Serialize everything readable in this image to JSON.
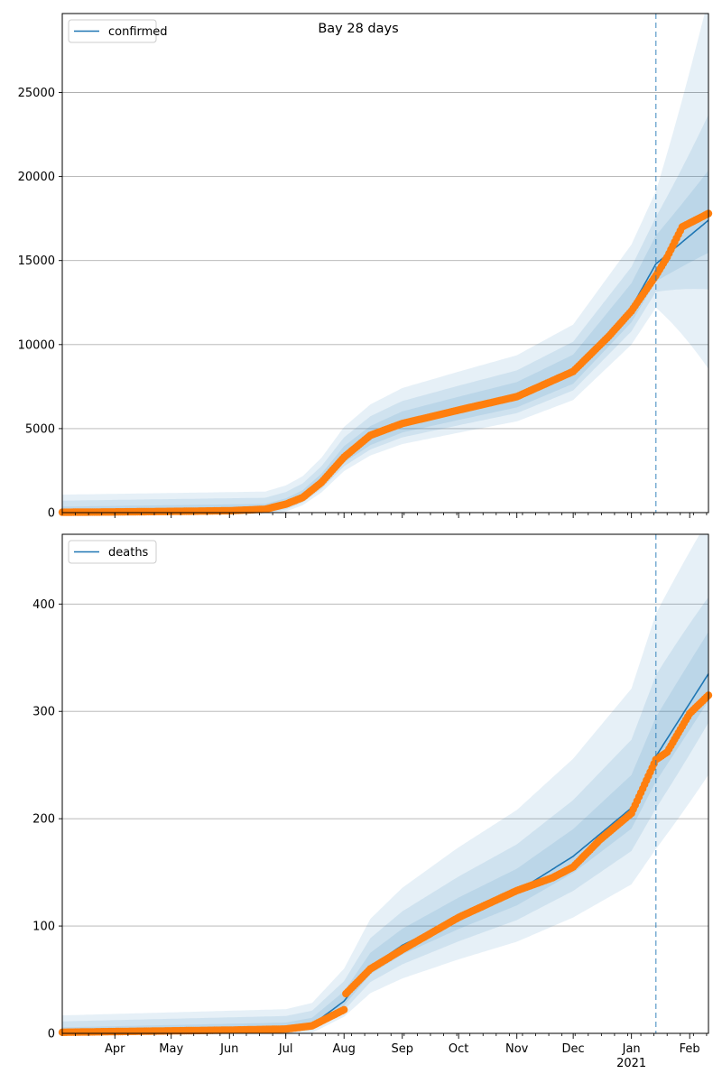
{
  "title": "Bay 28 days",
  "colors": {
    "model_line": "#1f77b4",
    "observed_points": "#ff7f0e",
    "band": "#1f77b4",
    "forecast_marker": "#1f77b4",
    "grid": "#b0b0b0"
  },
  "x_axis": {
    "month_ticks": [
      {
        "label": "Apr",
        "date": "2020-04-01"
      },
      {
        "label": "May",
        "date": "2020-05-01"
      },
      {
        "label": "Jun",
        "date": "2020-06-01"
      },
      {
        "label": "Jul",
        "date": "2020-07-01"
      },
      {
        "label": "Aug",
        "date": "2020-08-01"
      },
      {
        "label": "Sep",
        "date": "2020-09-01"
      },
      {
        "label": "Oct",
        "date": "2020-10-01"
      },
      {
        "label": "Nov",
        "date": "2020-11-01"
      },
      {
        "label": "Dec",
        "date": "2020-12-01"
      },
      {
        "label": "Jan",
        "date": "2021-01-01"
      },
      {
        "label": "Feb",
        "date": "2021-02-01"
      }
    ],
    "year_label": "2021",
    "range": [
      "2020-03-04",
      "2021-02-11"
    ],
    "forecast_start": "2021-01-14"
  },
  "chart_data": [
    {
      "type": "line",
      "legend": "confirmed",
      "legend_position": "upper-left",
      "grid": "y",
      "ylim": [
        0,
        29700
      ],
      "yticks": [
        0,
        5000,
        10000,
        15000,
        20000,
        25000
      ],
      "model": [
        [
          "2020-03-04",
          0
        ],
        [
          "2020-06-20",
          150
        ],
        [
          "2020-07-01",
          450
        ],
        [
          "2020-07-10",
          900
        ],
        [
          "2020-07-20",
          1800
        ],
        [
          "2020-08-01",
          3300
        ],
        [
          "2020-08-15",
          4400
        ],
        [
          "2020-09-01",
          5200
        ],
        [
          "2020-10-01",
          6000
        ],
        [
          "2020-11-01",
          6800
        ],
        [
          "2020-12-01",
          8300
        ],
        [
          "2021-01-01",
          12200
        ],
        [
          "2021-01-14",
          14800
        ],
        [
          "2021-02-11",
          17400
        ]
      ],
      "band_halfwidth_pct": [
        [
          0.09,
          0.14,
          0.22
        ],
        [
          0.15,
          0.32,
          0.7
        ]
      ],
      "observed": [
        [
          "2020-03-04",
          20
        ],
        [
          "2020-04-01",
          40
        ],
        [
          "2020-05-01",
          70
        ],
        [
          "2020-06-01",
          110
        ],
        [
          "2020-06-20",
          200
        ],
        [
          "2020-07-01",
          500
        ],
        [
          "2020-07-10",
          900
        ],
        [
          "2020-07-20",
          1800
        ],
        [
          "2020-08-01",
          3300
        ],
        [
          "2020-08-15",
          4600
        ],
        [
          "2020-09-01",
          5300
        ],
        [
          "2020-10-01",
          6100
        ],
        [
          "2020-11-01",
          6900
        ],
        [
          "2020-11-15",
          7600
        ],
        [
          "2020-12-01",
          8400
        ],
        [
          "2020-12-20",
          10500
        ],
        [
          "2021-01-01",
          12000
        ],
        [
          "2021-01-14",
          14100
        ],
        [
          "2021-01-20",
          15200
        ],
        [
          "2021-01-28",
          17000
        ],
        [
          "2021-02-11",
          17800
        ]
      ]
    },
    {
      "type": "line",
      "legend": "deaths",
      "legend_position": "upper-left",
      "grid": "y",
      "ylim": [
        0,
        465
      ],
      "yticks": [
        0,
        100,
        200,
        300,
        400
      ],
      "model": [
        [
          "2020-03-04",
          0
        ],
        [
          "2020-07-01",
          4
        ],
        [
          "2020-07-15",
          8
        ],
        [
          "2020-08-01",
          30
        ],
        [
          "2020-08-15",
          62
        ],
        [
          "2020-09-01",
          82
        ],
        [
          "2020-10-01",
          108
        ],
        [
          "2020-11-01",
          132
        ],
        [
          "2020-12-01",
          165
        ],
        [
          "2021-01-01",
          210
        ],
        [
          "2021-01-14",
          258
        ],
        [
          "2021-02-11",
          335
        ]
      ],
      "band_halfwidth_pct": [
        [
          0.12,
          0.25,
          0.45
        ],
        [
          0.1,
          0.18,
          0.38
        ]
      ],
      "observed": [
        [
          "2020-03-04",
          1
        ],
        [
          "2020-06-01",
          3
        ],
        [
          "2020-07-01",
          4
        ],
        [
          "2020-07-15",
          7
        ],
        [
          "2020-08-01",
          22
        ],
        [
          "2020-08-02",
          37
        ],
        [
          "2020-08-15",
          60
        ],
        [
          "2020-09-01",
          78
        ],
        [
          "2020-10-01",
          108
        ],
        [
          "2020-11-01",
          133
        ],
        [
          "2020-11-20",
          145
        ],
        [
          "2020-12-01",
          155
        ],
        [
          "2020-12-15",
          180
        ],
        [
          "2021-01-01",
          205
        ],
        [
          "2021-01-14",
          255
        ],
        [
          "2021-01-20",
          262
        ],
        [
          "2021-02-01",
          298
        ],
        [
          "2021-02-11",
          315
        ]
      ]
    }
  ]
}
